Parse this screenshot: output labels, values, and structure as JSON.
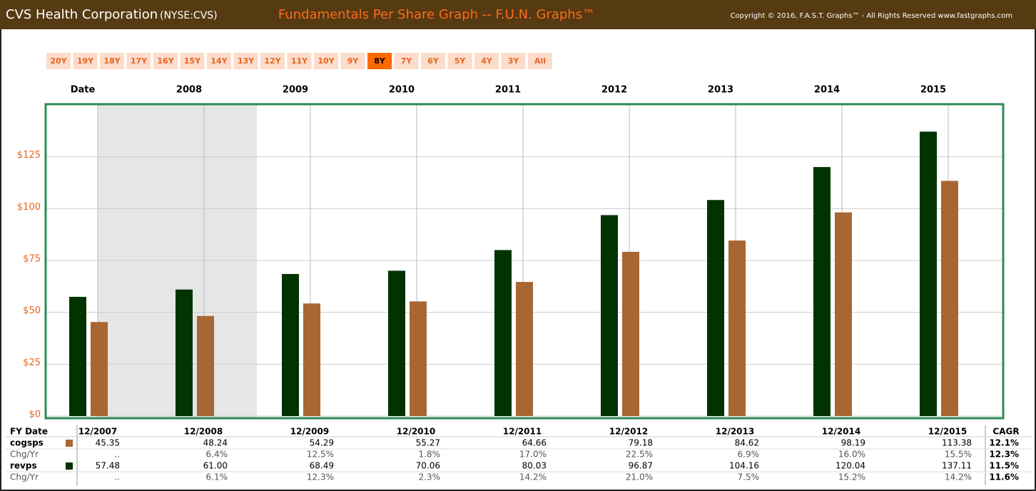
{
  "chart_data": {
    "type": "bar",
    "company": "CVS Health Corporation",
    "ticker": "(NYSE:CVS)",
    "title": "Fundamentals Per Share Graph -- F.U.N. Graphs™",
    "copyright": "Copyright © 2016, F.A.S.T. Graphs™ - All Rights Reserved www.fastgraphs.com",
    "ranges": [
      "20Y",
      "19Y",
      "18Y",
      "17Y",
      "16Y",
      "15Y",
      "14Y",
      "13Y",
      "12Y",
      "11Y",
      "10Y",
      "9Y",
      "8Y",
      "7Y",
      "6Y",
      "5Y",
      "4Y",
      "3Y",
      "All"
    ],
    "selected_range": "8Y",
    "year_labels": [
      "Date",
      "2008",
      "2009",
      "2010",
      "2011",
      "2012",
      "2013",
      "2014",
      "2015"
    ],
    "categories": [
      "12/2007",
      "12/2008",
      "12/2009",
      "12/2010",
      "12/2011",
      "12/2012",
      "12/2013",
      "12/2014",
      "12/2015"
    ],
    "ylim": [
      0,
      150
    ],
    "yticks": [
      {
        "value": 0,
        "label": "$0"
      },
      {
        "value": 25,
        "label": "$25"
      },
      {
        "value": 50,
        "label": "$50"
      },
      {
        "value": 75,
        "label": "$75"
      },
      {
        "value": 100,
        "label": "$100"
      },
      {
        "value": 125,
        "label": "$125"
      }
    ],
    "grid": true,
    "table_header": "FY Date",
    "cagr_header": "CAGR",
    "change_label": "Chg/Yr",
    "series": [
      {
        "name": "cogsps",
        "color": "#a86632",
        "values": [
          45.35,
          48.24,
          54.29,
          55.27,
          64.66,
          79.18,
          84.62,
          98.19,
          113.38
        ],
        "value_labels": [
          "45.35",
          "48.24",
          "54.29",
          "55.27",
          "64.66",
          "79.18",
          "84.62",
          "98.19",
          "113.38"
        ],
        "change": [
          "..",
          "6.4%",
          "12.5%",
          "1.8%",
          "17.0%",
          "22.5%",
          "6.9%",
          "16.0%",
          "15.5%"
        ],
        "cagr": "12.1%",
        "change_cagr": "12.3%"
      },
      {
        "name": "revps",
        "color": "#003300",
        "values": [
          57.48,
          61.0,
          68.49,
          70.06,
          80.03,
          96.87,
          104.16,
          120.04,
          137.11
        ],
        "value_labels": [
          "57.48",
          "61.00",
          "68.49",
          "70.06",
          "80.03",
          "96.87",
          "104.16",
          "120.04",
          "137.11"
        ],
        "change": [
          "..",
          "6.1%",
          "12.3%",
          "2.3%",
          "14.2%",
          "21.0%",
          "7.5%",
          "15.2%",
          "14.2%"
        ],
        "cagr": "11.5%",
        "change_cagr": "11.6%"
      }
    ]
  }
}
